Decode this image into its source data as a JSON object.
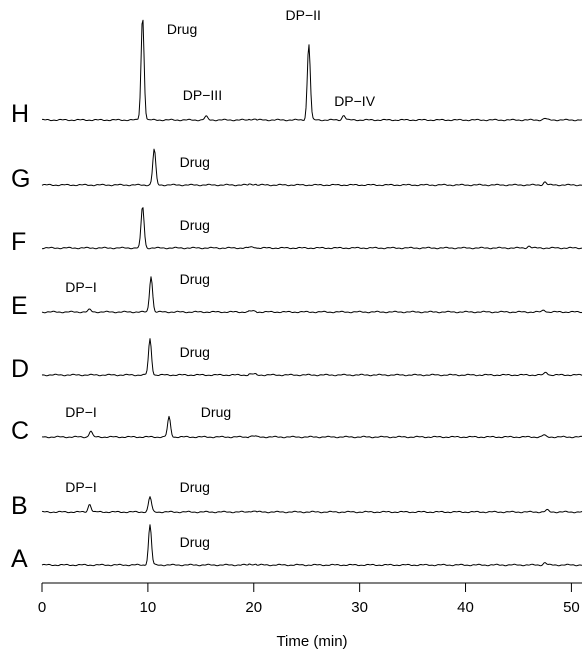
{
  "chart_data": {
    "type": "line",
    "title": "",
    "xlabel": "Time (min)",
    "ylabel": "",
    "xlim": [
      0,
      51
    ],
    "xticks": [
      0,
      10,
      20,
      30,
      40,
      50
    ],
    "grid": false,
    "legend": "none",
    "series": [
      {
        "name": "A",
        "peaks": [
          {
            "x": 10.2,
            "h": 1.0
          },
          {
            "x": 47.5,
            "h": 0.06
          }
        ],
        "annotations": [
          {
            "text": "Drug",
            "x": 13,
            "y": 0.45
          }
        ]
      },
      {
        "name": "B",
        "peaks": [
          {
            "x": 4.5,
            "h": 0.2
          },
          {
            "x": 10.2,
            "h": 0.38
          },
          {
            "x": 47.7,
            "h": 0.05
          }
        ],
        "annotations": [
          {
            "text": "DP−I",
            "x": 2.2,
            "y": 0.5
          },
          {
            "text": "Drug",
            "x": 13,
            "y": 0.5
          }
        ]
      },
      {
        "name": "C",
        "peaks": [
          {
            "x": 4.6,
            "h": 0.15
          },
          {
            "x": 12.0,
            "h": 0.5
          },
          {
            "x": 47.4,
            "h": 0.05
          }
        ],
        "annotations": [
          {
            "text": "DP−I",
            "x": 2.2,
            "y": 0.5
          },
          {
            "text": "Drug",
            "x": 15,
            "y": 0.5
          }
        ]
      },
      {
        "name": "D",
        "peaks": [
          {
            "x": 10.2,
            "h": 0.9
          },
          {
            "x": 47.6,
            "h": 0.07
          }
        ],
        "annotations": [
          {
            "text": "Drug",
            "x": 13,
            "y": 0.45
          }
        ]
      },
      {
        "name": "E",
        "peaks": [
          {
            "x": 4.5,
            "h": 0.06
          },
          {
            "x": 10.3,
            "h": 0.9
          },
          {
            "x": 47.4,
            "h": 0.05
          }
        ],
        "annotations": [
          {
            "text": "DP−I",
            "x": 2.2,
            "y": 0.5
          },
          {
            "text": "Drug",
            "x": 13,
            "y": 0.7
          }
        ]
      },
      {
        "name": "F",
        "peaks": [
          {
            "x": 9.5,
            "h": 1.05
          },
          {
            "x": 46.0,
            "h": 0.05
          }
        ],
        "annotations": [
          {
            "text": "Drug",
            "x": 13,
            "y": 0.45
          }
        ]
      },
      {
        "name": "G",
        "peaks": [
          {
            "x": 10.6,
            "h": 0.9
          },
          {
            "x": 47.5,
            "h": 0.08
          }
        ],
        "annotations": [
          {
            "text": "Drug",
            "x": 13,
            "y": 0.45
          }
        ]
      },
      {
        "name": "H",
        "peaks": [
          {
            "x": 9.5,
            "h": 2.6
          },
          {
            "x": 15.5,
            "h": 0.09
          },
          {
            "x": 25.2,
            "h": 1.9
          },
          {
            "x": 28.5,
            "h": 0.12
          },
          {
            "x": 47.5,
            "h": 0.04
          }
        ],
        "annotations": [
          {
            "text": "Drug",
            "x": 11.8,
            "y": 2.15
          },
          {
            "text": "DP−III",
            "x": 13.3,
            "y": 0.5
          },
          {
            "text": "DP−II",
            "x": 23.0,
            "y": 2.5
          },
          {
            "text": "DP−IV",
            "x": 27.6,
            "y": 0.35
          }
        ]
      }
    ]
  }
}
